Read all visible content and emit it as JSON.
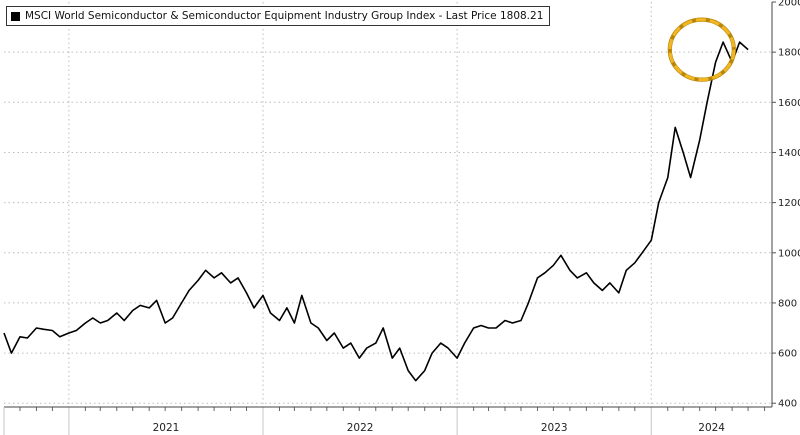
{
  "chart_data": {
    "type": "line",
    "title": "MSCI World Semiconductor & Semiconductor Equipment Industry Group Index - Last Price 1808.21",
    "legend": {
      "name": "MSCI World Semiconductor & Semiconductor Equipment Industry Group Index - Last Price 1808.21",
      "color": "#000000",
      "placement": "top-left"
    },
    "y_axis": {
      "position": "right",
      "ticks": [
        400,
        600,
        800,
        1000,
        1200,
        1400,
        1600,
        1800,
        2000
      ],
      "ylim": [
        385,
        2000
      ]
    },
    "x_axis": {
      "categories": [
        "2021",
        "2022",
        "2023",
        "2024"
      ],
      "xlim": [
        "2020-09-01",
        "2024-08-15"
      ]
    },
    "grid": {
      "vertical": true,
      "horizontal": true,
      "style": "dotted"
    },
    "annotation": {
      "shape": "circle",
      "color": "#f2b623",
      "style": "dashed",
      "around": [
        "2024-03-01",
        "2024-04-10"
      ]
    },
    "series": [
      {
        "name": "MSCI World Semiconductor & Semiconductor Equipment Industry Group Index - Last Price 1808.21",
        "color": "#000000",
        "points": [
          [
            "2020-09-01",
            680
          ],
          [
            "2020-09-15",
            600
          ],
          [
            "2020-10-01",
            665
          ],
          [
            "2020-10-15",
            660
          ],
          [
            "2020-11-01",
            700
          ],
          [
            "2020-11-15",
            695
          ],
          [
            "2020-12-01",
            690
          ],
          [
            "2020-12-15",
            665
          ],
          [
            "2021-01-01",
            680
          ],
          [
            "2021-01-15",
            690
          ],
          [
            "2021-02-01",
            720
          ],
          [
            "2021-02-15",
            740
          ],
          [
            "2021-03-01",
            720
          ],
          [
            "2021-03-15",
            730
          ],
          [
            "2021-04-01",
            760
          ],
          [
            "2021-04-15",
            730
          ],
          [
            "2021-05-01",
            770
          ],
          [
            "2021-05-15",
            790
          ],
          [
            "2021-06-01",
            780
          ],
          [
            "2021-06-15",
            810
          ],
          [
            "2021-07-01",
            720
          ],
          [
            "2021-07-15",
            740
          ],
          [
            "2021-08-01",
            800
          ],
          [
            "2021-08-15",
            850
          ],
          [
            "2021-09-01",
            890
          ],
          [
            "2021-09-15",
            930
          ],
          [
            "2021-10-01",
            900
          ],
          [
            "2021-10-15",
            920
          ],
          [
            "2021-11-01",
            880
          ],
          [
            "2021-11-15",
            900
          ],
          [
            "2021-12-01",
            840
          ],
          [
            "2021-12-15",
            780
          ],
          [
            "2022-01-01",
            830
          ],
          [
            "2022-01-15",
            760
          ],
          [
            "2022-02-01",
            730
          ],
          [
            "2022-02-15",
            780
          ],
          [
            "2022-03-01",
            720
          ],
          [
            "2022-03-15",
            830
          ],
          [
            "2022-04-01",
            720
          ],
          [
            "2022-04-15",
            700
          ],
          [
            "2022-05-01",
            650
          ],
          [
            "2022-05-15",
            680
          ],
          [
            "2022-06-01",
            620
          ],
          [
            "2022-06-15",
            640
          ],
          [
            "2022-07-01",
            580
          ],
          [
            "2022-07-15",
            620
          ],
          [
            "2022-08-01",
            640
          ],
          [
            "2022-08-15",
            700
          ],
          [
            "2022-09-01",
            580
          ],
          [
            "2022-09-15",
            620
          ],
          [
            "2022-10-01",
            530
          ],
          [
            "2022-10-15",
            490
          ],
          [
            "2022-11-01",
            530
          ],
          [
            "2022-11-15",
            600
          ],
          [
            "2022-12-01",
            640
          ],
          [
            "2022-12-15",
            620
          ],
          [
            "2023-01-01",
            580
          ],
          [
            "2023-01-15",
            640
          ],
          [
            "2023-02-01",
            700
          ],
          [
            "2023-02-15",
            710
          ],
          [
            "2023-03-01",
            700
          ],
          [
            "2023-03-15",
            700
          ],
          [
            "2023-04-01",
            730
          ],
          [
            "2023-04-15",
            720
          ],
          [
            "2023-05-01",
            730
          ],
          [
            "2023-05-15",
            800
          ],
          [
            "2023-06-01",
            900
          ],
          [
            "2023-06-15",
            920
          ],
          [
            "2023-07-01",
            950
          ],
          [
            "2023-07-15",
            990
          ],
          [
            "2023-08-01",
            930
          ],
          [
            "2023-08-15",
            900
          ],
          [
            "2023-09-01",
            920
          ],
          [
            "2023-09-15",
            880
          ],
          [
            "2023-10-01",
            850
          ],
          [
            "2023-10-15",
            880
          ],
          [
            "2023-11-01",
            840
          ],
          [
            "2023-11-15",
            930
          ],
          [
            "2023-12-01",
            960
          ],
          [
            "2023-12-15",
            1000
          ],
          [
            "2024-01-01",
            1050
          ],
          [
            "2024-01-15",
            1200
          ],
          [
            "2024-02-01",
            1300
          ],
          [
            "2024-02-15",
            1500
          ],
          [
            "2024-03-01",
            1400
          ],
          [
            "2024-03-15",
            1300
          ],
          [
            "2024-04-01",
            1450
          ],
          [
            "2024-04-15",
            1600
          ],
          [
            "2024-05-01",
            1760
          ],
          [
            "2024-05-15",
            1840
          ],
          [
            "2024-06-01",
            1760
          ],
          [
            "2024-06-15",
            1840
          ],
          [
            "2024-07-01",
            1810
          ]
        ]
      }
    ]
  }
}
